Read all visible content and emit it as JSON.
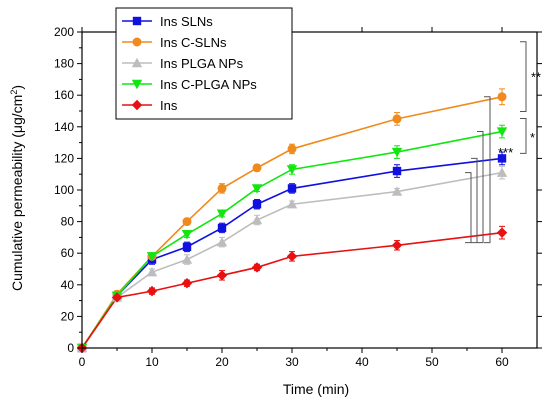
{
  "chart_data": {
    "type": "line",
    "xlabel": "Time (min)",
    "ylabel_main": "Cumulative permeability (μg/cm",
    "ylabel_sup": "2",
    "ylabel_end": ")",
    "xlim": [
      0,
      65
    ],
    "ylim": [
      0,
      200
    ],
    "xticks": [
      0,
      10,
      20,
      30,
      40,
      50,
      60
    ],
    "yticks": [
      0,
      20,
      40,
      60,
      80,
      100,
      120,
      140,
      160,
      180,
      200
    ],
    "legend_position": "top-left",
    "x": [
      0,
      5,
      10,
      15,
      20,
      25,
      30,
      45,
      60
    ],
    "series": [
      {
        "name": "Ins SLNs",
        "color": "#1010e0",
        "marker": "square",
        "values": [
          0,
          33,
          56,
          64,
          76,
          91,
          101,
          112,
          120
        ],
        "errors": [
          0,
          2,
          3,
          3,
          3,
          3,
          3,
          4,
          4
        ]
      },
      {
        "name": "Ins C-SLNs",
        "color": "#f08a1c",
        "marker": "circle",
        "values": [
          0,
          34,
          58,
          80,
          101,
          114,
          126,
          145,
          159
        ],
        "errors": [
          0,
          2,
          2,
          2,
          3,
          2,
          3,
          4,
          5
        ]
      },
      {
        "name": "Ins PLGA NPs",
        "color": "#bdbdbd",
        "marker": "triangle-up",
        "values": [
          0,
          32,
          48,
          56,
          67,
          81,
          91,
          99,
          111
        ],
        "errors": [
          0,
          2,
          2,
          3,
          3,
          3,
          2,
          2,
          4
        ]
      },
      {
        "name": "Ins C-PLGA NPs",
        "color": "#11e611",
        "marker": "triangle-down",
        "values": [
          0,
          33,
          58,
          72,
          85,
          101,
          113,
          124,
          137
        ],
        "errors": [
          0,
          2,
          2,
          2,
          2,
          2,
          3,
          4,
          4
        ]
      },
      {
        "name": "Ins",
        "color": "#e81010",
        "marker": "diamond",
        "values": [
          0,
          32,
          36,
          41,
          46,
          51,
          58,
          65,
          73
        ],
        "errors": [
          0,
          2,
          2,
          2,
          3,
          2,
          3,
          3,
          4
        ]
      }
    ],
    "significance": [
      {
        "label": "**",
        "from": "Ins C-SLNs",
        "to": "Ins C-PLGA NPs"
      },
      {
        "label": "*",
        "from": "Ins C-PLGA NPs",
        "to": "Ins SLNs"
      },
      {
        "label": "***",
        "from_values": [
          159,
          137,
          120,
          111
        ],
        "to": "Ins"
      }
    ]
  }
}
